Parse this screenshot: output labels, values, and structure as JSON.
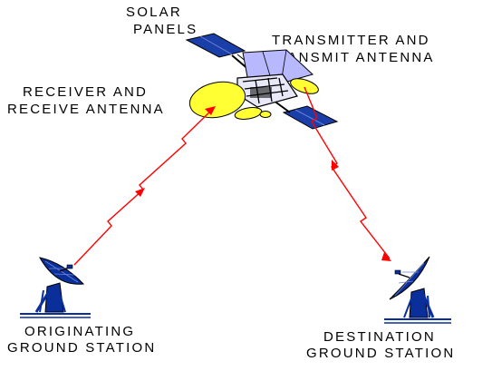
{
  "labels": {
    "solar_line1": "SOLAR",
    "solar_line2": "PANELS",
    "transmitter_line1": "TRANSMITTER AND",
    "transmitter_line2": "TRANSMIT ANTENNA",
    "receiver_line1": "RECEIVER AND",
    "receiver_line2": "RECEIVE ANTENNA",
    "origin_line1": "ORIGINATING",
    "origin_line2": "GROUND STATION",
    "dest_line1": "DESTINATION",
    "dest_line2": "GROUND STATION"
  },
  "colors": {
    "signal": "#ff0000",
    "dish": "#0a2f9a",
    "panel": "#1a3fa8",
    "antenna": "#ffff33",
    "body": "#b8b8ff",
    "text": "#000000"
  }
}
